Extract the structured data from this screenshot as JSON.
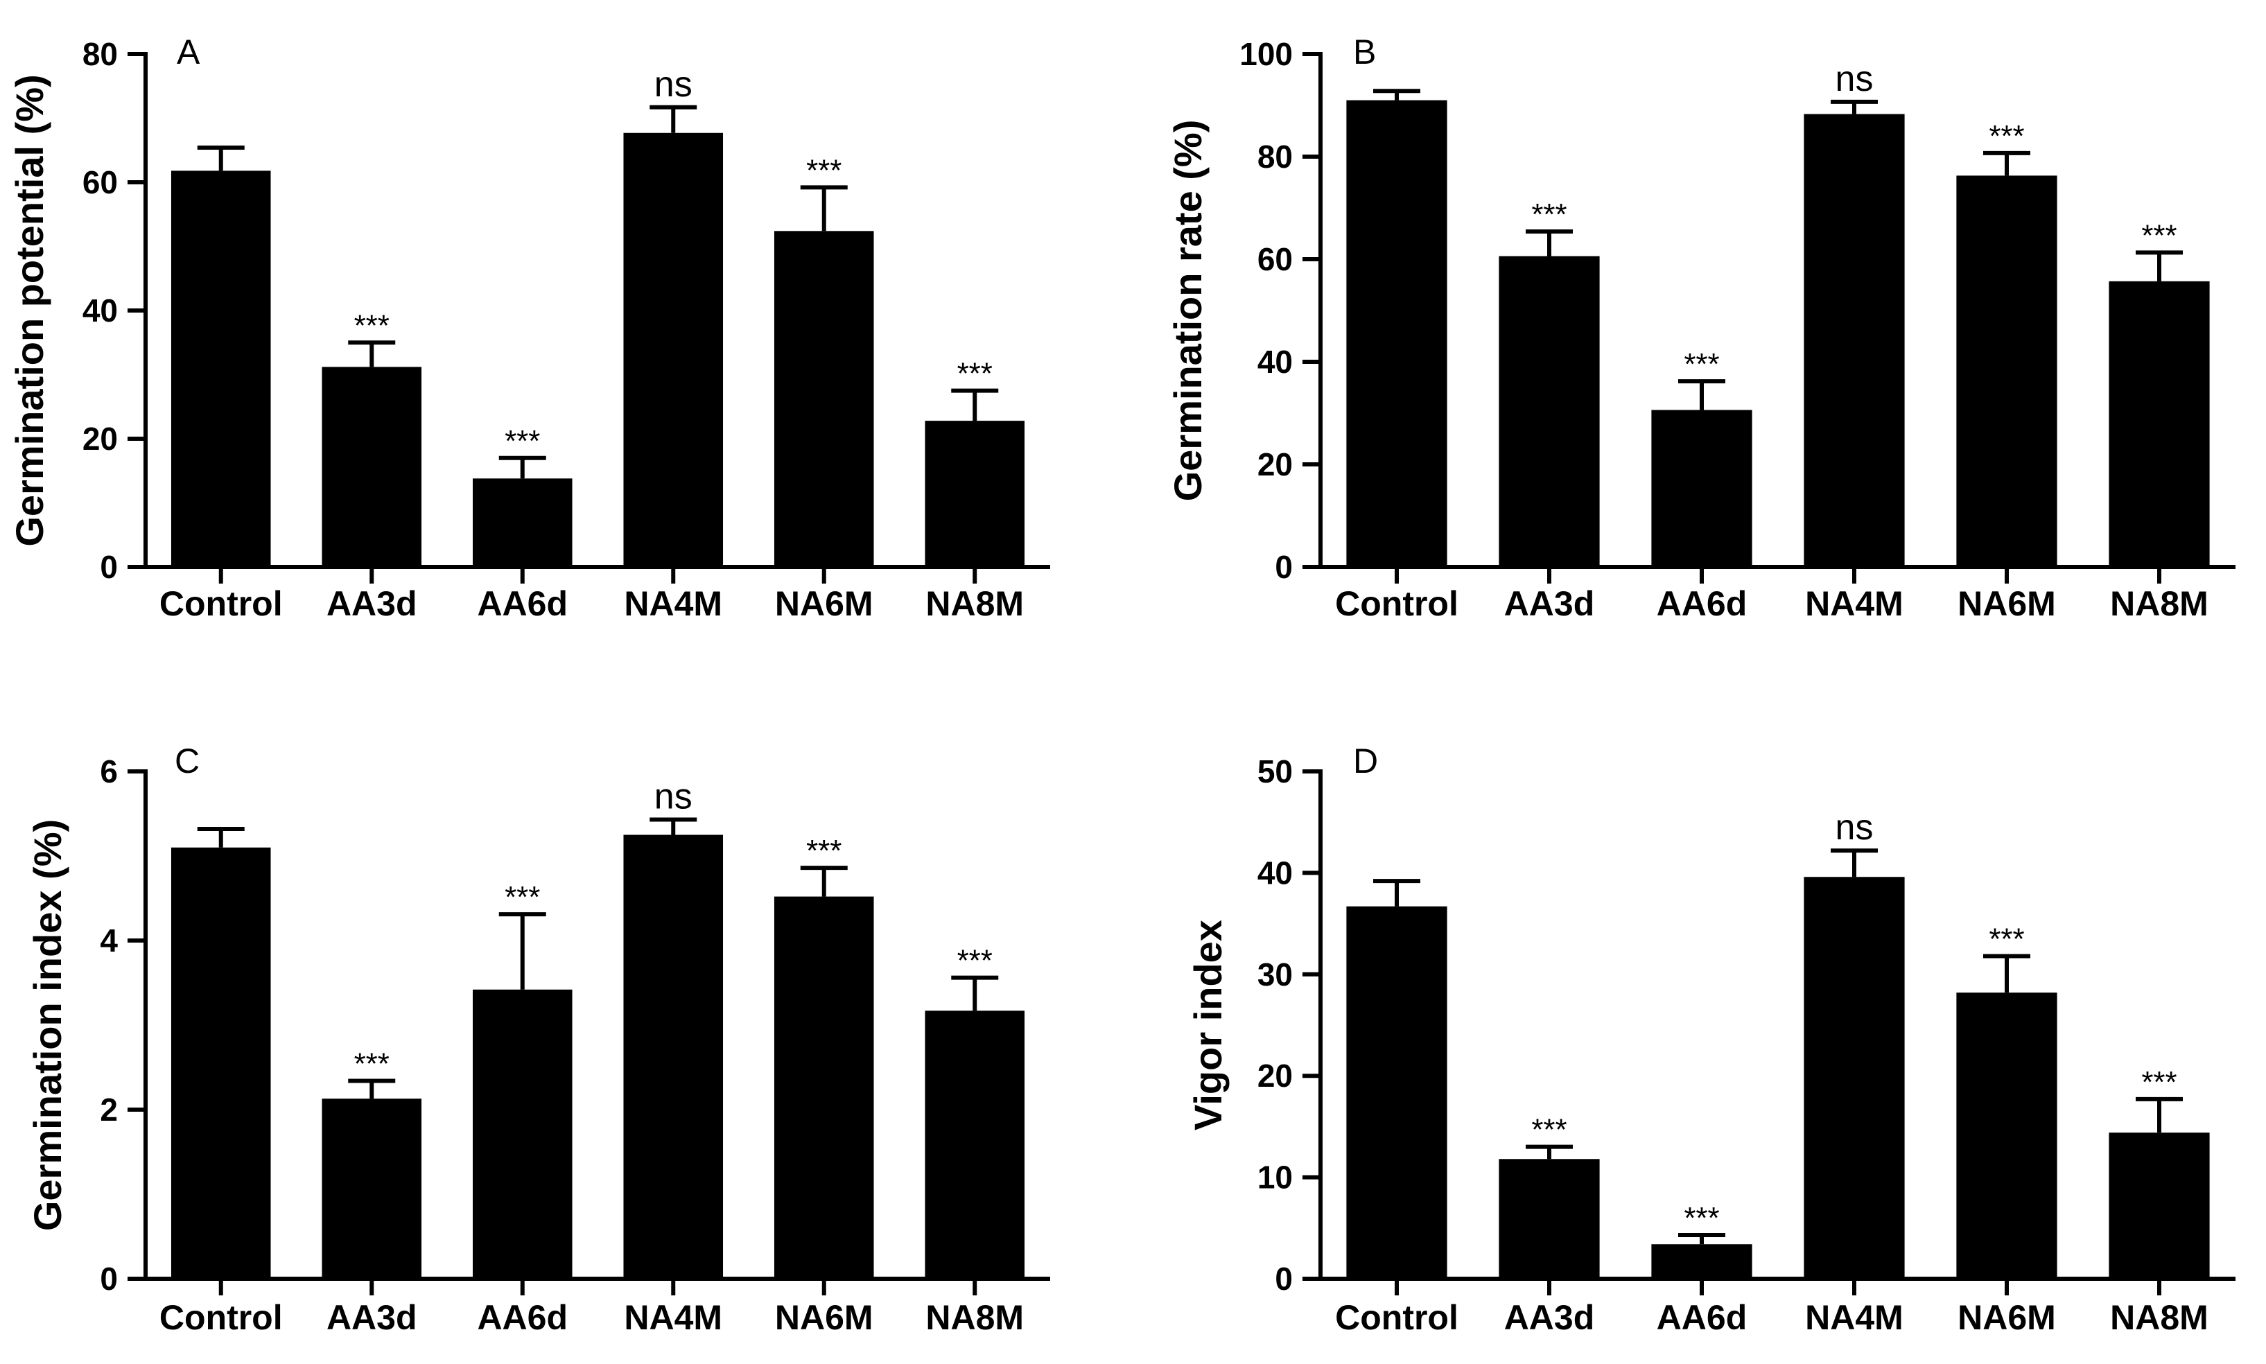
{
  "figure": {
    "colors": {
      "bar": "#000000",
      "axis": "#000000",
      "background": "#ffffff"
    }
  },
  "chart_data": [
    {
      "type": "bar",
      "panel": "A",
      "title": "",
      "xlabel": "",
      "ylabel": "Germination potential (%)",
      "ylim": [
        0,
        80
      ],
      "yticks": [
        0,
        20,
        40,
        60,
        80
      ],
      "categories": [
        "Control",
        "AA3d",
        "AA6d",
        "NA4M",
        "NA6M",
        "NA8M"
      ],
      "values": [
        61.8,
        31.2,
        13.8,
        67.7,
        52.4,
        22.8
      ],
      "errors": [
        3.6,
        3.8,
        3.2,
        4.0,
        6.8,
        4.7
      ],
      "annotations": [
        "",
        "***",
        "***",
        "ns",
        "***",
        "***"
      ]
    },
    {
      "type": "bar",
      "panel": "B",
      "title": "",
      "xlabel": "",
      "ylabel": "Germination rate (%)",
      "ylim": [
        0,
        100
      ],
      "yticks": [
        0,
        20,
        40,
        60,
        80,
        100
      ],
      "categories": [
        "Control",
        "AA3d",
        "AA6d",
        "NA4M",
        "NA6M",
        "NA8M"
      ],
      "values": [
        91.0,
        60.6,
        30.6,
        88.3,
        76.3,
        55.7
      ],
      "errors": [
        1.8,
        4.8,
        5.6,
        2.4,
        4.4,
        5.6
      ],
      "annotations": [
        "",
        "***",
        "***",
        "ns",
        "***",
        "***"
      ]
    },
    {
      "type": "bar",
      "panel": "C",
      "title": "",
      "xlabel": "",
      "ylabel": "Germination index (%)",
      "ylim": [
        0,
        6
      ],
      "yticks": [
        0,
        2,
        4,
        6
      ],
      "categories": [
        "Control",
        "AA3d",
        "AA6d",
        "NA4M",
        "NA6M",
        "NA8M"
      ],
      "values": [
        5.1,
        2.13,
        3.42,
        5.25,
        4.52,
        3.17
      ],
      "errors": [
        0.22,
        0.21,
        0.89,
        0.18,
        0.34,
        0.39
      ],
      "annotations": [
        "",
        "***",
        "***",
        "ns",
        "***",
        "***"
      ]
    },
    {
      "type": "bar",
      "panel": "D",
      "title": "",
      "xlabel": "",
      "ylabel": "Vigor index",
      "ylim": [
        0,
        50
      ],
      "yticks": [
        0,
        10,
        20,
        30,
        40,
        50
      ],
      "categories": [
        "Control",
        "AA3d",
        "AA6d",
        "NA4M",
        "NA6M",
        "NA8M"
      ],
      "values": [
        36.7,
        11.8,
        3.4,
        39.6,
        28.2,
        14.4
      ],
      "errors": [
        2.5,
        1.2,
        0.9,
        2.6,
        3.6,
        3.3
      ],
      "annotations": [
        "",
        "***",
        "***",
        "ns",
        "***",
        "***"
      ]
    }
  ]
}
